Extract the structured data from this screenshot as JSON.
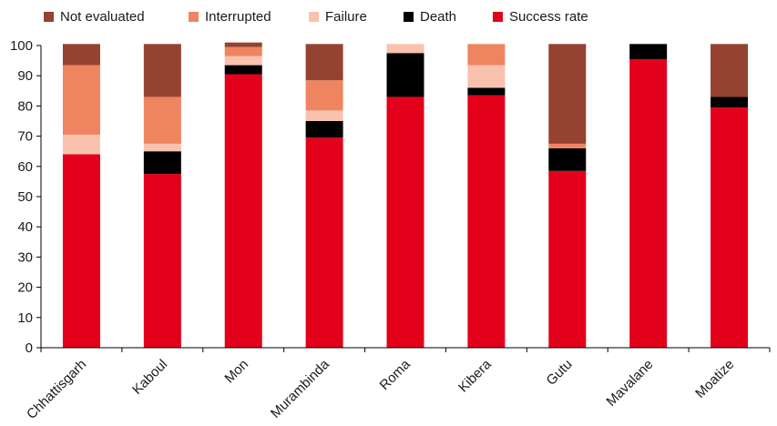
{
  "chart_data": {
    "type": "bar",
    "stacked": true,
    "categories": [
      "Chhattisgarh",
      "Kaboul",
      "Mon",
      "Murambinda",
      "Roma",
      "Kibera",
      "Gutu",
      "Mavalane",
      "Moatize"
    ],
    "series": [
      {
        "name": "Success rate",
        "color": "#e2001a",
        "values": [
          64,
          57.5,
          90.5,
          69.5,
          83,
          83.5,
          58.5,
          95.5,
          79.5
        ]
      },
      {
        "name": "Death",
        "color": "#000000",
        "values": [
          0,
          7.5,
          3,
          5.5,
          14.5,
          2.5,
          7.5,
          5,
          3.5
        ]
      },
      {
        "name": "Failure",
        "color": "#f8c2ae",
        "values": [
          6.5,
          2.5,
          3,
          3.5,
          3,
          7.5,
          0,
          0,
          0
        ]
      },
      {
        "name": "Interrupted",
        "color": "#ef8460",
        "values": [
          23,
          15.5,
          3,
          10,
          0,
          7,
          1.5,
          0,
          0
        ]
      },
      {
        "name": "Not evaluated",
        "color": "#944231",
        "values": [
          7,
          17.5,
          1.5,
          12,
          0,
          0,
          33,
          0,
          17.5
        ]
      }
    ],
    "legend_order": [
      "Not evaluated",
      "Interrupted",
      "Failure",
      "Death",
      "Success rate"
    ],
    "legend_position": "top-left",
    "y_ticks": [
      "0",
      "10",
      "20",
      "30",
      "40",
      "50",
      "60",
      "70",
      "80",
      "90",
      "100"
    ],
    "ylim": [
      0,
      100
    ],
    "grid": false,
    "title": "",
    "xlabel": "",
    "ylabel": ""
  }
}
